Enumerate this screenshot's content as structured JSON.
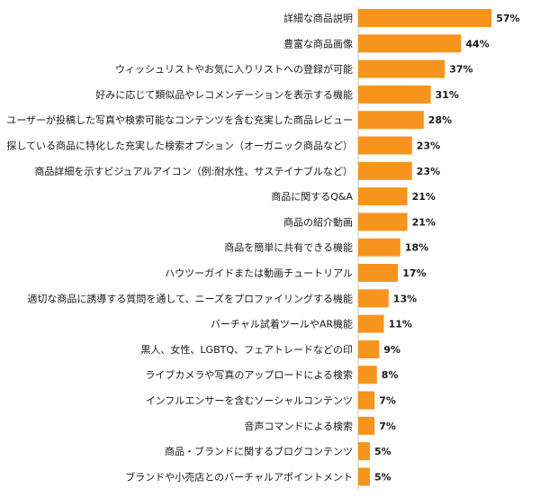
{
  "chart_data": {
    "type": "bar",
    "orientation": "horizontal",
    "title": "",
    "xlabel": "",
    "ylabel": "",
    "xlim": [
      0,
      60
    ],
    "grid": false,
    "legend": "none",
    "bar_color": "#F7941D",
    "value_suffix": "%",
    "categories": [
      "詳細な商品説明",
      "豊富な商品画像",
      "ウィッシュリストやお気に入りリストへの登録が可能",
      "好みに応じて類似品やレコメンデーションを表示する機能",
      "ユーザーが投稿した写真や検索可能なコンテンツを含む充実した商品レビュー",
      "探している商品に特化した充実した検索オプション（オーガニック商品など）",
      "商品詳細を示すビジュアルアイコン（例:耐水性、サステイナブルなど）",
      "商品に関するQ&A",
      "商品の紹介動画",
      "商品を簡単に共有できる機能",
      "ハウツーガイドまたは動画チュートリアル",
      "適切な商品に誘導する質問を通して、ニーズをプロファイリングする機能",
      "バーチャル試着ツールやAR機能",
      "黒人、女性、LGBTQ、フェアトレードなどの印",
      "ライブカメラや写真のアップロードによる検索",
      "インフルエンサーを含むソーシャルコンテンツ",
      "音声コマンドによる検索",
      "商品・ブランドに関するブログコンテンツ",
      "ブランドや小売店とのバーチャルアポイントメント"
    ],
    "values": [
      57,
      44,
      37,
      31,
      28,
      23,
      23,
      21,
      21,
      18,
      17,
      13,
      11,
      9,
      8,
      7,
      7,
      5,
      5
    ]
  }
}
